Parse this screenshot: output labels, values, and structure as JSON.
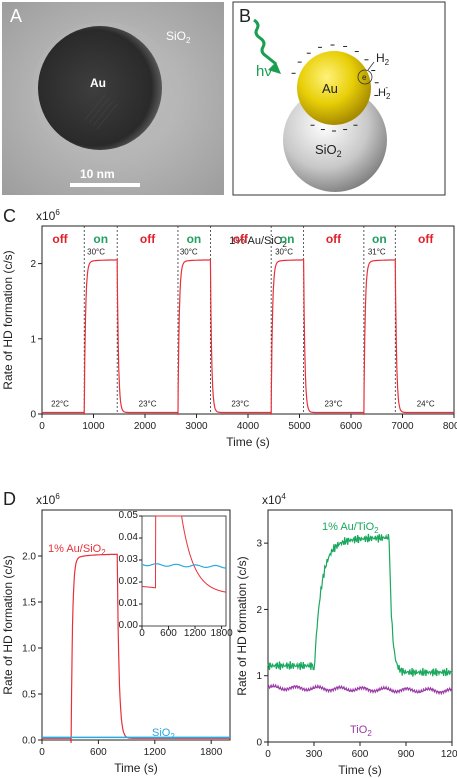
{
  "colors": {
    "red": "#e8303a",
    "blue": "#2aa9e0",
    "green": "#1aa85f",
    "purple": "#9a3aa6",
    "onGreen": "#21a060",
    "offRed": "#e0202a"
  },
  "panels": {
    "a": "A",
    "b": "B",
    "c": "C",
    "d": "D"
  },
  "panelA": {
    "label": "Au",
    "sio2": "SiO",
    "sio2_sub": "2",
    "scalebar": "10 nm"
  },
  "panelB": {
    "hv": "hν",
    "au": "Au",
    "sio2": "SiO",
    "sio2_sub": "2",
    "h2": "H",
    "h2_sub": "2",
    "hminus": "H",
    "hminus_sub": "2",
    "hminus_sup": "-",
    "e": "e"
  },
  "chart_data": [
    {
      "id": "C",
      "type": "line",
      "title": "1% Au/SiO",
      "title_sub": "2",
      "ylabel": "Rate of HD formation (c/s)",
      "xlabel": "Time (s)",
      "multiplier": "x10",
      "multiplier_exp": "6",
      "xlim": [
        0,
        8000
      ],
      "ylim": [
        0,
        2.5
      ],
      "xticks": [
        0,
        1000,
        2000,
        3000,
        4000,
        5000,
        6000,
        7000,
        8000
      ],
      "yticks": [
        0,
        1,
        2
      ],
      "switch_times": [
        820,
        1460,
        2640,
        3270,
        4450,
        5080,
        6250,
        6860
      ],
      "on_intervals": [
        [
          820,
          1460
        ],
        [
          2640,
          3270
        ],
        [
          4450,
          5080
        ],
        [
          6250,
          6860
        ]
      ],
      "on_level": 2.05,
      "off_level": 0.02,
      "state_labels": [
        {
          "x": 350,
          "text": "off",
          "state": "off"
        },
        {
          "x": 1140,
          "text": "on",
          "state": "on"
        },
        {
          "x": 2050,
          "text": "off",
          "state": "off"
        },
        {
          "x": 2950,
          "text": "on",
          "state": "on"
        },
        {
          "x": 3850,
          "text": "off",
          "state": "off"
        },
        {
          "x": 4760,
          "text": "on",
          "state": "on"
        },
        {
          "x": 5660,
          "text": "off",
          "state": "off"
        },
        {
          "x": 6550,
          "text": "on",
          "state": "on"
        },
        {
          "x": 7450,
          "text": "off",
          "state": "off"
        }
      ],
      "temperatures": [
        {
          "x": 350,
          "y": 0.1,
          "text": "22°C"
        },
        {
          "x": 1050,
          "y": 2.12,
          "text": "30°C"
        },
        {
          "x": 2050,
          "y": 0.1,
          "text": "23°C"
        },
        {
          "x": 2850,
          "y": 2.12,
          "text": "30°C"
        },
        {
          "x": 3850,
          "y": 0.1,
          "text": "23°C"
        },
        {
          "x": 4700,
          "y": 2.12,
          "text": "30°C"
        },
        {
          "x": 5660,
          "y": 0.1,
          "text": "23°C"
        },
        {
          "x": 6500,
          "y": 2.12,
          "text": "31°C"
        },
        {
          "x": 7450,
          "y": 0.1,
          "text": "24°C"
        }
      ]
    },
    {
      "id": "D-left",
      "type": "line",
      "ylabel": "Rate of HD formation (c/s)",
      "xlabel": "Time (s)",
      "multiplier": "x10",
      "multiplier_exp": "6",
      "xlim": [
        0,
        2000
      ],
      "ylim": [
        0,
        2.5
      ],
      "xticks": [
        0,
        600,
        1200,
        1800
      ],
      "yticks": [
        0.0,
        0.5,
        1.0,
        1.5,
        2.0
      ],
      "series": [
        {
          "name": "1% Au/SiO",
          "name_sub": "2",
          "color": "red",
          "on": 310,
          "off": 800,
          "on_level": 2.02,
          "off_level": 0.018
        },
        {
          "name": "SiO",
          "name_sub": "2",
          "color": "blue",
          "level": 0.028
        }
      ],
      "inset": {
        "xlim": [
          0,
          1900
        ],
        "ylim": [
          0,
          0.05
        ],
        "xticks": [
          0,
          600,
          1200,
          1800
        ],
        "yticks": [
          0.0,
          0.01,
          0.02,
          0.03,
          0.04,
          0.05
        ]
      }
    },
    {
      "id": "D-right",
      "type": "line",
      "ylabel": "Rate of HD formation (c/s)",
      "xlabel": "Time (s)",
      "multiplier": "x10",
      "multiplier_exp": "4",
      "xlim": [
        0,
        1200
      ],
      "ylim": [
        0,
        3.5
      ],
      "xticks": [
        0,
        300,
        600,
        900,
        1200
      ],
      "yticks": [
        0,
        1,
        2,
        3
      ],
      "series": [
        {
          "name": "1% Au/TiO",
          "name_sub": "2",
          "color": "green",
          "on": 300,
          "off": 790,
          "base": 1.15,
          "peak": 3.1,
          "end": 1.05
        },
        {
          "name": "TiO",
          "name_sub": "2",
          "color": "purple",
          "level": 0.82,
          "end": 0.77
        }
      ]
    }
  ]
}
